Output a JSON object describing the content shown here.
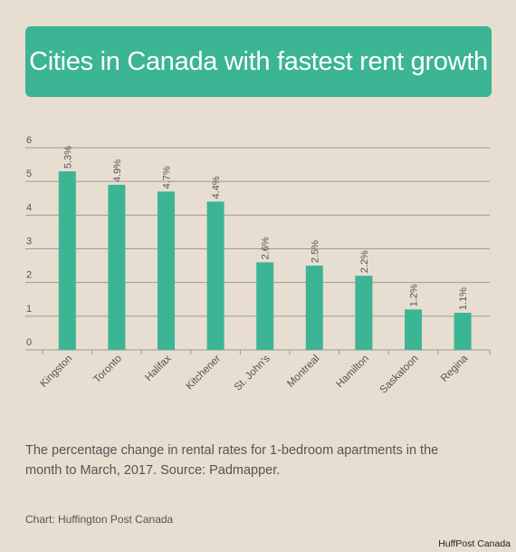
{
  "header": {
    "title": "Cities in Canada with fastest rent growth"
  },
  "chart_data": {
    "type": "bar",
    "categories": [
      "Kingston",
      "Toronto",
      "Halifax",
      "Kitchener",
      "St. John's",
      "Montreal",
      "Hamilton",
      "Saskatoon",
      "Regina"
    ],
    "values": [
      5.3,
      4.9,
      4.7,
      4.4,
      2.6,
      2.5,
      2.2,
      1.2,
      1.1
    ],
    "value_labels": [
      "5.3%",
      "4.9%",
      "4.7%",
      "4.4%",
      "2.6%",
      "2.5%",
      "2.2%",
      "1.2%",
      "1.1%"
    ],
    "ylim": [
      0,
      6
    ],
    "yticks": [
      "0",
      "1",
      "2",
      "3",
      "4",
      "5",
      "6"
    ],
    "grid": true,
    "colors": {
      "bar": "#3bb594",
      "grid": "#9a9a9a",
      "background": "#e7ddd0"
    }
  },
  "caption": "The percentage change in rental rates for 1-bedroom apartments in the month to March, 2017. Source: Padmapper.",
  "credit": "Chart: Huffington Post Canada",
  "watermark": "HuffPost Canada"
}
